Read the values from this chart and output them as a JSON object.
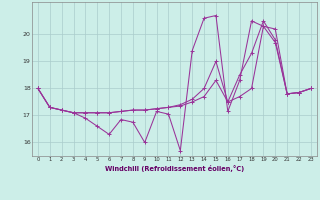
{
  "xlabel": "Windchill (Refroidissement éolien,°C)",
  "background_color": "#cceee8",
  "grid_color": "#aacccc",
  "line_color": "#993399",
  "xlim": [
    -0.5,
    23.5
  ],
  "ylim": [
    15.5,
    21.2
  ],
  "yticks": [
    16,
    17,
    18,
    19,
    20
  ],
  "xticks": [
    0,
    1,
    2,
    3,
    4,
    5,
    6,
    7,
    8,
    9,
    10,
    11,
    12,
    13,
    14,
    15,
    16,
    17,
    18,
    19,
    20,
    21,
    22,
    23
  ],
  "series1": [
    18.0,
    17.3,
    17.2,
    17.1,
    16.9,
    16.6,
    16.3,
    16.85,
    16.75,
    16.0,
    17.15,
    17.05,
    15.7,
    19.4,
    20.6,
    20.7,
    17.15,
    18.3,
    20.5,
    20.3,
    19.7,
    17.8,
    17.85,
    18.0
  ],
  "series2": [
    18.0,
    17.3,
    17.2,
    17.1,
    17.1,
    17.1,
    17.1,
    17.15,
    17.2,
    17.2,
    17.25,
    17.3,
    17.35,
    17.5,
    17.7,
    18.3,
    17.5,
    17.7,
    18.0,
    20.3,
    20.2,
    17.8,
    17.85,
    18.0
  ],
  "series3": [
    18.0,
    17.3,
    17.2,
    17.1,
    17.1,
    17.1,
    17.1,
    17.15,
    17.2,
    17.2,
    17.25,
    17.3,
    17.4,
    17.6,
    18.0,
    19.0,
    17.5,
    18.5,
    19.3,
    20.5,
    19.8,
    17.8,
    17.85,
    18.0
  ]
}
